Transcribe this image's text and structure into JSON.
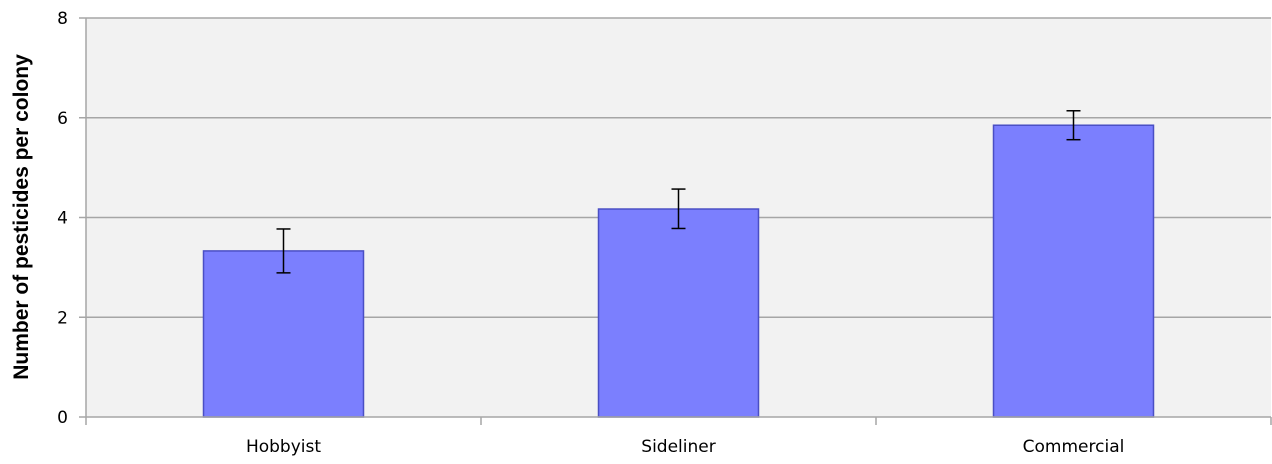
{
  "chart_data": {
    "type": "bar",
    "title": "",
    "xlabel": "",
    "ylabel": "Number of  pesticides per colony",
    "categories": [
      "Hobbyist",
      "Sideliner",
      "Commercial"
    ],
    "values": [
      3.33,
      4.17,
      5.85
    ],
    "error_bars": [
      {
        "low": 2.89,
        "high": 3.77
      },
      {
        "low": 3.78,
        "high": 4.57
      },
      {
        "low": 5.56,
        "high": 6.14
      }
    ],
    "ylim": [
      0,
      8
    ],
    "yticks": [
      0,
      2,
      4,
      6,
      8
    ],
    "grid": true,
    "legend": "none",
    "colors": {
      "bar_fill": "#7b7ffe",
      "bar_stroke": "#4a4fc4",
      "plot_background": "#f2f2f2",
      "gridline": "#a6a6a6",
      "error_bar": "#000000"
    }
  }
}
